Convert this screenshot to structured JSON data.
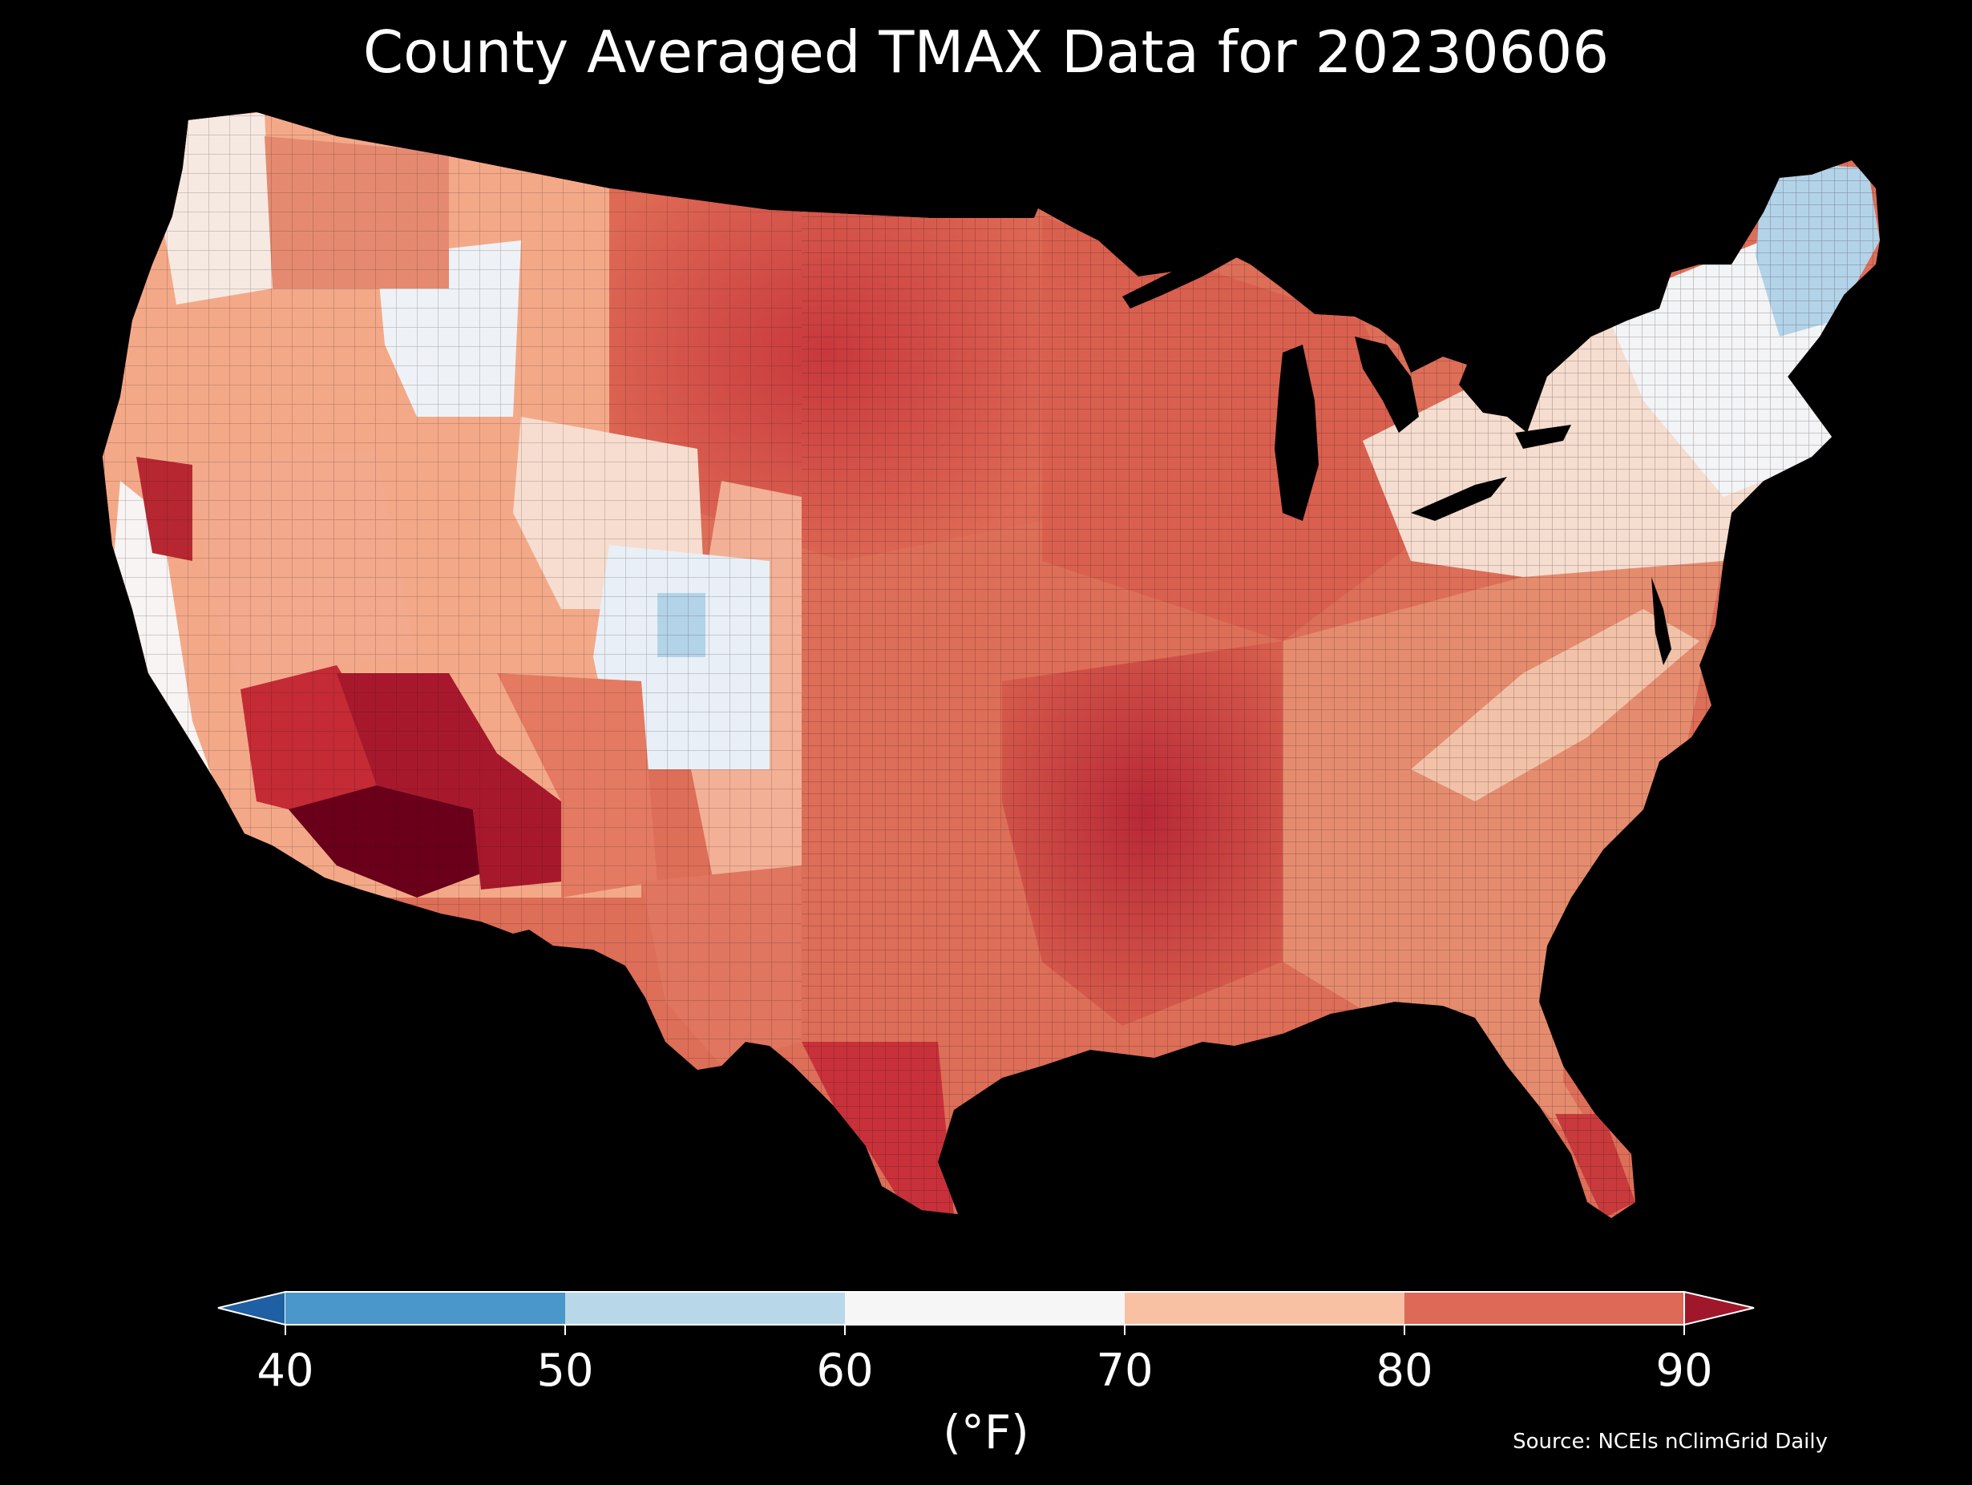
{
  "title": "County Averaged TMAX Data for 20230606",
  "colorbar": {
    "ticks": [
      "40",
      "50",
      "60",
      "70",
      "80",
      "90"
    ],
    "unit": "(°F)",
    "bins": [
      {
        "range": "<40",
        "color": "#1f5fa3"
      },
      {
        "range": "40-50",
        "color": "#4a97c9"
      },
      {
        "range": "50-60",
        "color": "#b8d8ea"
      },
      {
        "range": "60-70",
        "color": "#f6f6f6"
      },
      {
        "range": "70-80",
        "color": "#f8c1a4"
      },
      {
        "range": "80-90",
        "color": "#dc6a56"
      },
      {
        "range": ">90",
        "color": "#a0172b"
      }
    ]
  },
  "source": "Source: NCEIs nClimGrid Daily",
  "map": {
    "background": "#000000",
    "regions": [
      {
        "name": "Northeast / Maine",
        "color": "#b3d3e8"
      },
      {
        "name": "New England",
        "color": "#f1f4f7"
      },
      {
        "name": "Pacific Northwest coast",
        "color": "#f4f3f3"
      },
      {
        "name": "Northern Rockies",
        "color": "#eef2f6"
      },
      {
        "name": "Colorado Rockies",
        "color": "#e6eef6"
      },
      {
        "name": "Great Basin",
        "color": "#f6c8ad"
      },
      {
        "name": "Northern Plains",
        "color": "#d8574a"
      },
      {
        "name": "Central Plains",
        "color": "#e47a62"
      },
      {
        "name": "Lower Mississippi Valley",
        "color": "#c23a3f"
      },
      {
        "name": "Southeast",
        "color": "#e58c6f"
      },
      {
        "name": "Desert Southwest",
        "color": "#6a0019"
      },
      {
        "name": "Central Valley California",
        "color": "#b72732"
      },
      {
        "name": "South Texas",
        "color": "#c8313a"
      }
    ]
  }
}
